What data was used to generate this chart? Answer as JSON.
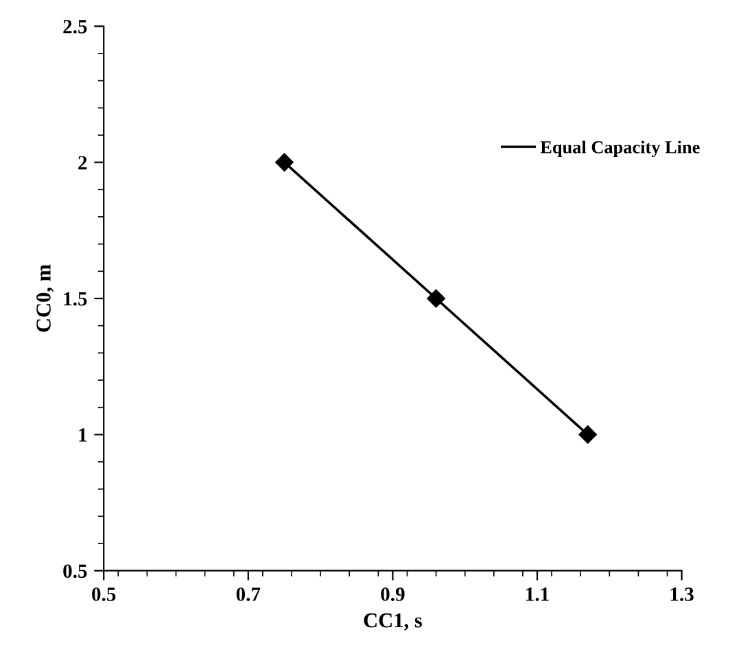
{
  "chart_data": {
    "type": "line",
    "xlabel": "CC1, s",
    "ylabel": "CC0, m",
    "series": [
      {
        "name": "Equal Capacity Line",
        "color": "#000000",
        "x": [
          0.75,
          0.96,
          1.17
        ],
        "values": [
          2,
          1.5,
          1
        ]
      }
    ],
    "xlim": [
      0.5,
      1.3
    ],
    "xticks": [
      0.5,
      0.7,
      0.9,
      1.1,
      1.3
    ],
    "ylim": [
      0.5,
      2.5
    ],
    "yticks": [
      0.5,
      1,
      1.5,
      2,
      2.5
    ],
    "marker": "diamond",
    "line_style": "solid",
    "grid": false,
    "legend": "top right"
  }
}
